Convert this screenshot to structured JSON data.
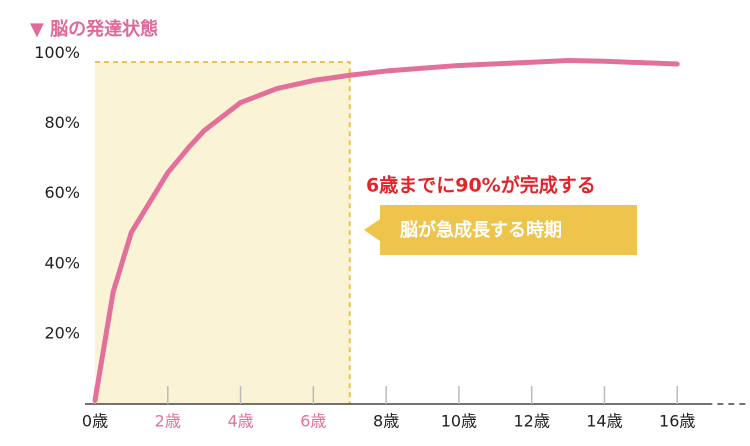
{
  "chart_data": {
    "type": "line",
    "title": "▼ 脳の発達状態",
    "x": [
      0,
      0.5,
      1,
      2,
      2.6,
      3,
      4,
      5,
      6,
      7,
      8,
      10,
      12,
      13,
      14,
      16
    ],
    "series": [
      {
        "name": "脳の発達",
        "color": "#e2709a",
        "values": [
          1,
          32,
          49,
          66,
          73.5,
          78,
          86,
          90,
          92.3,
          93.8,
          95,
          96.6,
          97.5,
          98,
          97.8,
          97
        ]
      }
    ],
    "xlim": [
      0,
      18
    ],
    "ylim": [
      0,
      105
    ],
    "xticks": [
      {
        "value": 0,
        "label": "0歳"
      },
      {
        "value": 2,
        "label": "2歳"
      },
      {
        "value": 4,
        "label": "4歳"
      },
      {
        "value": 6,
        "label": "6歳"
      },
      {
        "value": 8,
        "label": "8歳"
      },
      {
        "value": 10,
        "label": "10歳"
      },
      {
        "value": 12,
        "label": "12歳"
      },
      {
        "value": 14,
        "label": "14歳"
      },
      {
        "value": 16,
        "label": "16歳"
      }
    ],
    "yticks": [
      {
        "value": 20,
        "label": "20%"
      },
      {
        "value": 40,
        "label": "40%"
      },
      {
        "value": 60,
        "label": "60%"
      },
      {
        "value": 80,
        "label": "80%"
      },
      {
        "value": 100,
        "label": "100%"
      }
    ],
    "highlight": {
      "xlim": [
        0,
        7
      ],
      "color": "#fbf3d5",
      "border_color": "#f0c43a",
      "label_color": "#e2709a"
    },
    "annotations": [
      {
        "text": "6歳までに90%が完成する",
        "color": "#e0262b"
      },
      {
        "text": "脳が急成長する時期",
        "color": "#efc44c"
      }
    ]
  }
}
